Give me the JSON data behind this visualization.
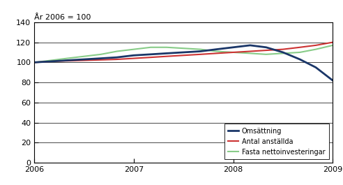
{
  "title": "År 2006 = 100",
  "xlim": [
    2006,
    2009
  ],
  "ylim": [
    0,
    140
  ],
  "yticks": [
    0,
    20,
    40,
    60,
    80,
    100,
    120,
    140
  ],
  "xticks": [
    2006,
    2007,
    2008,
    2009
  ],
  "omsattning": {
    "x": [
      2006.0,
      2006.17,
      2006.33,
      2006.5,
      2006.67,
      2006.83,
      2007.0,
      2007.17,
      2007.33,
      2007.5,
      2007.67,
      2007.83,
      2008.0,
      2008.17,
      2008.33,
      2008.5,
      2008.67,
      2008.83,
      2009.0
    ],
    "y": [
      100,
      101,
      102,
      103,
      104,
      105,
      107,
      108,
      109,
      110,
      111,
      113,
      115,
      117,
      115,
      110,
      103,
      95,
      82
    ],
    "color": "#1a3668",
    "label": "Omsättning",
    "linewidth": 2.0
  },
  "antal": {
    "x": [
      2006.0,
      2006.17,
      2006.33,
      2006.5,
      2006.67,
      2006.83,
      2007.0,
      2007.17,
      2007.33,
      2007.5,
      2007.67,
      2007.83,
      2008.0,
      2008.17,
      2008.33,
      2008.5,
      2008.67,
      2008.83,
      2009.0
    ],
    "y": [
      100,
      101,
      101.5,
      102,
      102.5,
      103,
      104,
      105,
      106,
      107,
      108,
      109,
      110,
      111,
      112,
      113,
      115,
      117,
      120
    ],
    "color": "#cc3333",
    "label": "Antal anställda",
    "linewidth": 1.5
  },
  "fasta": {
    "x": [
      2006.0,
      2006.17,
      2006.33,
      2006.5,
      2006.67,
      2006.83,
      2007.0,
      2007.17,
      2007.33,
      2007.5,
      2007.67,
      2007.83,
      2008.0,
      2008.17,
      2008.33,
      2008.5,
      2008.67,
      2008.83,
      2009.0
    ],
    "y": [
      100,
      102,
      104,
      106,
      108,
      111,
      113,
      115,
      115,
      114,
      113,
      111,
      110,
      109,
      108,
      109,
      110,
      113,
      117
    ],
    "color": "#88cc88",
    "label": "Fasta nettoinvesteringar",
    "linewidth": 1.5
  },
  "bg_color": "#ffffff",
  "tick_fontsize": 8,
  "title_fontsize": 8
}
